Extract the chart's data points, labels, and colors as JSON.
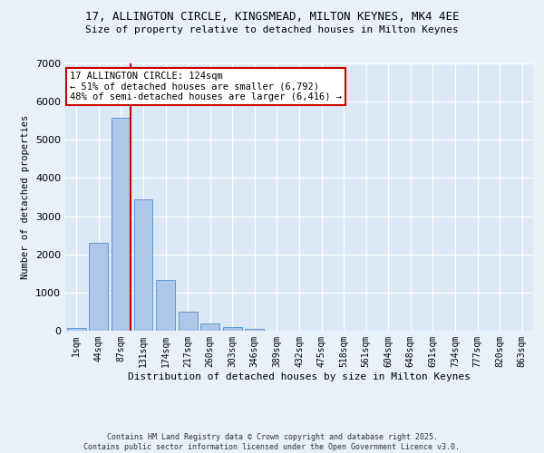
{
  "title_line1": "17, ALLINGTON CIRCLE, KINGSMEAD, MILTON KEYNES, MK4 4EE",
  "title_line2": "Size of property relative to detached houses in Milton Keynes",
  "xlabel": "Distribution of detached houses by size in Milton Keynes",
  "ylabel": "Number of detached properties",
  "categories": [
    "1sqm",
    "44sqm",
    "87sqm",
    "131sqm",
    "174sqm",
    "217sqm",
    "260sqm",
    "303sqm",
    "346sqm",
    "389sqm",
    "432sqm",
    "475sqm",
    "518sqm",
    "561sqm",
    "604sqm",
    "648sqm",
    "691sqm",
    "734sqm",
    "777sqm",
    "820sqm",
    "863sqm"
  ],
  "values": [
    70,
    2300,
    5570,
    3430,
    1320,
    490,
    185,
    95,
    55,
    0,
    0,
    0,
    0,
    0,
    0,
    0,
    0,
    0,
    0,
    0,
    0
  ],
  "bar_color": "#aec6e8",
  "bar_edge_color": "#5b9bd5",
  "vline_color": "#cc0000",
  "ylim": [
    0,
    7000
  ],
  "yticks": [
    0,
    1000,
    2000,
    3000,
    4000,
    5000,
    6000,
    7000
  ],
  "annotation_text": "17 ALLINGTON CIRCLE: 124sqm\n← 51% of detached houses are smaller (6,792)\n48% of semi-detached houses are larger (6,416) →",
  "annotation_box_color": "#cc0000",
  "footer_line1": "Contains HM Land Registry data © Crown copyright and database right 2025.",
  "footer_line2": "Contains public sector information licensed under the Open Government Licence v3.0.",
  "bg_color": "#e8f0f8",
  "plot_bg_color": "#dce8f5"
}
